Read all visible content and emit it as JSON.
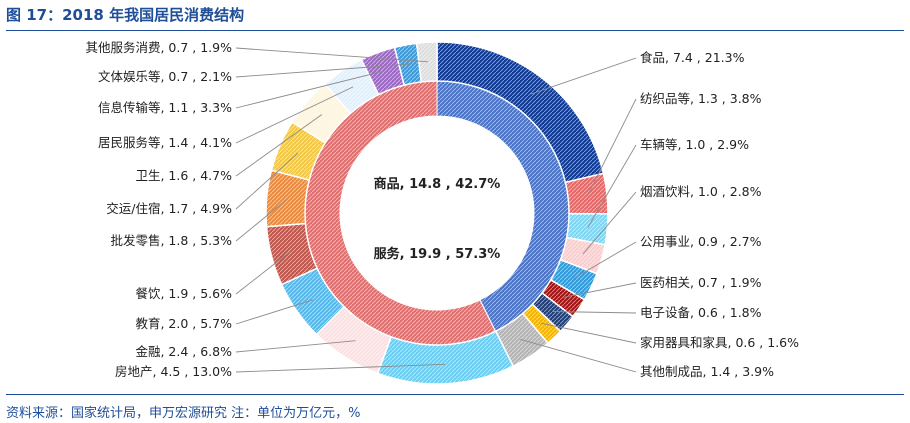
{
  "title": "图 17：2018 年我国居民消费结构",
  "source": "资料来源：国家统计局，申万宏源研究  注：单位为万亿元，%",
  "chart_data": {
    "type": "pie",
    "subtype": "double-donut",
    "inner": [
      {
        "name": "商品",
        "value": 14.8,
        "percent": 42.7,
        "color": "#4a74c9"
      },
      {
        "name": "服务",
        "value": 19.9,
        "percent": 57.3,
        "color": "#e07070"
      }
    ],
    "outer": [
      {
        "name": "食品",
        "value": 7.4,
        "percent": 21.3,
        "color": "#0f3a96",
        "side": "right"
      },
      {
        "name": "纺织品等",
        "value": 1.3,
        "percent": 3.8,
        "color": "#e46969",
        "side": "right"
      },
      {
        "name": "车辆等",
        "value": 1.0,
        "percent": 2.9,
        "color": "#7fd6f3",
        "side": "right"
      },
      {
        "name": "烟酒饮料",
        "value": 1.0,
        "percent": 2.8,
        "color": "#f7cfd0",
        "side": "right"
      },
      {
        "name": "公用事业",
        "value": 0.9,
        "percent": 2.7,
        "color": "#2f9bdc",
        "side": "right"
      },
      {
        "name": "医药相关",
        "value": 0.7,
        "percent": 1.9,
        "color": "#a51313",
        "side": "right"
      },
      {
        "name": "电子设备",
        "value": 0.6,
        "percent": 1.8,
        "color": "#1f3e78",
        "side": "right"
      },
      {
        "name": "家用器具和家具",
        "value": 0.6,
        "percent": 1.6,
        "color": "#f4b400",
        "side": "right"
      },
      {
        "name": "其他制成品",
        "value": 1.4,
        "percent": 3.9,
        "color": "#b4b4b4",
        "side": "right"
      },
      {
        "name": "房地产",
        "value": 4.5,
        "percent": 13.0,
        "color": "#6ccef3",
        "side": "left"
      },
      {
        "name": "金融",
        "value": 2.4,
        "percent": 6.8,
        "color": "#fae2e3",
        "side": "left"
      },
      {
        "name": "教育",
        "value": 2.0,
        "percent": 5.7,
        "color": "#57b8ea",
        "side": "left"
      },
      {
        "name": "餐饮",
        "value": 1.9,
        "percent": 5.6,
        "color": "#c0574c",
        "side": "left"
      },
      {
        "name": "批发零售",
        "value": 1.8,
        "percent": 5.3,
        "color": "#ea8c40",
        "side": "left"
      },
      {
        "name": "交运/住宿",
        "value": 1.7,
        "percent": 4.9,
        "color": "#f4c842",
        "side": "left"
      },
      {
        "name": "卫生",
        "value": 1.6,
        "percent": 4.7,
        "color": "#fdf5df",
        "side": "left"
      },
      {
        "name": "居民服务等",
        "value": 1.4,
        "percent": 4.1,
        "color": "#e3f0fb",
        "side": "left"
      },
      {
        "name": "信息传输等",
        "value": 1.1,
        "percent": 3.3,
        "color": "#9b68c3",
        "side": "left"
      },
      {
        "name": "文体娱乐等",
        "value": 0.7,
        "percent": 2.1,
        "color": "#3d99d8",
        "side": "left"
      },
      {
        "name": "其他服务消费",
        "value": 0.7,
        "percent": 1.9,
        "color": "#dedede",
        "side": "left"
      }
    ]
  }
}
